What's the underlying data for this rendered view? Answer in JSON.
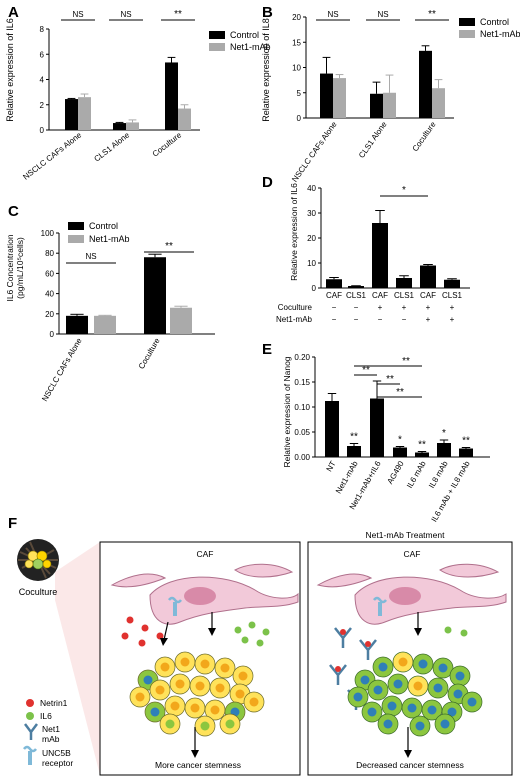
{
  "colors": {
    "control": "#000000",
    "mab": "#aaaaaa",
    "netrin": "#e0322f",
    "il6": "#7cc24a",
    "cell_orange": "#f2a71b",
    "cell_yellow": "#ffe25a",
    "cell_green": "#8cc63f",
    "cell_blue": "#2f7fb8",
    "caf": "#f2c9d9",
    "caf_edge": "#b0708c",
    "receptor": "#7fb9d8",
    "mab_icon": "#4d7ea1"
  },
  "legend": {
    "control": "Control",
    "mab": "Net1-mAb"
  },
  "chart_data": [
    {
      "panel": "A",
      "type": "bar",
      "ylabel": "Relative expression of IL6",
      "ylim": [
        0,
        8
      ],
      "yticks": [
        "0",
        "2",
        "4",
        "6",
        "8"
      ],
      "categories": [
        "NSCLC CAFs Alone",
        "CLS1 Alone",
        "Coculture"
      ],
      "series": [
        {
          "name": "Control",
          "values": [
            2.45,
            0.55,
            5.35
          ],
          "err": [
            0.05,
            0.05,
            0.4
          ]
        },
        {
          "name": "Net1-mAb",
          "values": [
            2.6,
            0.6,
            1.7
          ],
          "err": [
            0.25,
            0.2,
            0.3
          ]
        }
      ],
      "sig": [
        "NS",
        "NS",
        "**"
      ]
    },
    {
      "panel": "B",
      "type": "bar",
      "ylabel": "Relative expression of IL8",
      "ylim": [
        0,
        20
      ],
      "yticks": [
        "0",
        "5",
        "10",
        "15",
        "20"
      ],
      "categories": [
        "NSCLC CAFs Alone",
        "CLS1 Alone",
        "Coculture"
      ],
      "series": [
        {
          "name": "Control",
          "values": [
            8.8,
            4.8,
            13.3
          ],
          "err": [
            3.2,
            2.3,
            1.0
          ]
        },
        {
          "name": "Net1-mAb",
          "values": [
            7.9,
            5.0,
            5.9
          ],
          "err": [
            0.7,
            3.5,
            1.7
          ]
        }
      ],
      "sig": [
        "NS",
        "NS",
        "**"
      ]
    },
    {
      "panel": "C",
      "type": "bar",
      "ylabel": "IL6 Concentration",
      "ylabel2": "(pg/mL/10⁵cells)",
      "ylim": [
        0,
        100
      ],
      "yticks": [
        "0",
        "20",
        "40",
        "60",
        "80",
        "100"
      ],
      "categories": [
        "NSCLC CAFs Alone",
        "Coculture"
      ],
      "series": [
        {
          "name": "Control",
          "values": [
            18,
            76
          ],
          "err": [
            1.5,
            3
          ]
        },
        {
          "name": "Net1-mAb",
          "values": [
            18,
            26
          ],
          "err": [
            0.5,
            1.5
          ]
        }
      ],
      "sig": [
        "NS",
        "**"
      ]
    },
    {
      "panel": "D",
      "type": "bar",
      "ylabel": "Relative expression of IL6",
      "ylim": [
        0,
        40
      ],
      "yticks": [
        "0",
        "10",
        "20",
        "30",
        "40"
      ],
      "values": [
        3.5,
        0.8,
        26,
        4,
        9,
        3.3
      ],
      "err": [
        0.7,
        0.1,
        5,
        0.9,
        0.4,
        0.4
      ],
      "rows": [
        {
          "label": "",
          "cells": [
            "CAF",
            "CLS1",
            "CAF",
            "CLS1",
            "CAF",
            "CLS1"
          ]
        },
        {
          "label": "Coculture",
          "cells": [
            "−",
            "−",
            "+",
            "+",
            "+",
            "+"
          ]
        },
        {
          "label": "Net1-mAb",
          "cells": [
            "−",
            "−",
            "−",
            "−",
            "+",
            "+"
          ]
        }
      ],
      "sig": "*"
    },
    {
      "panel": "E",
      "type": "bar",
      "ylabel": "Relative expression of Nanog",
      "ylim": [
        0,
        0.2
      ],
      "yticks": [
        "0.00",
        "0.05",
        "0.10",
        "0.15",
        "0.20"
      ],
      "categories": [
        "NT",
        "Net1-mAb",
        "Net1-mAb+rIL6",
        "AG490",
        "IL6 mAb",
        "IL8 mAb",
        "IL6 mAb + IL8 mAb"
      ],
      "values": [
        0.112,
        0.022,
        0.117,
        0.019,
        0.009,
        0.028,
        0.017
      ],
      "err": [
        0.015,
        0.005,
        0.035,
        0.002,
        0.002,
        0.006,
        0.002
      ],
      "stars": [
        "",
        "**",
        "",
        "*",
        "**",
        "*",
        "**"
      ],
      "sig": [
        "**",
        "**",
        "**",
        "**"
      ]
    }
  ],
  "panel_f": {
    "coculture_label": "Coculture",
    "left_title": "CAF",
    "left_caption": "More cancer stemness",
    "right_header": "Net1-mAb Treatment",
    "right_title": "CAF",
    "right_caption": "Decreased cancer stemness",
    "legend": [
      "Netrin1",
      "IL6",
      "Net1",
      "mAb",
      "UNC5B",
      "receptor"
    ]
  }
}
